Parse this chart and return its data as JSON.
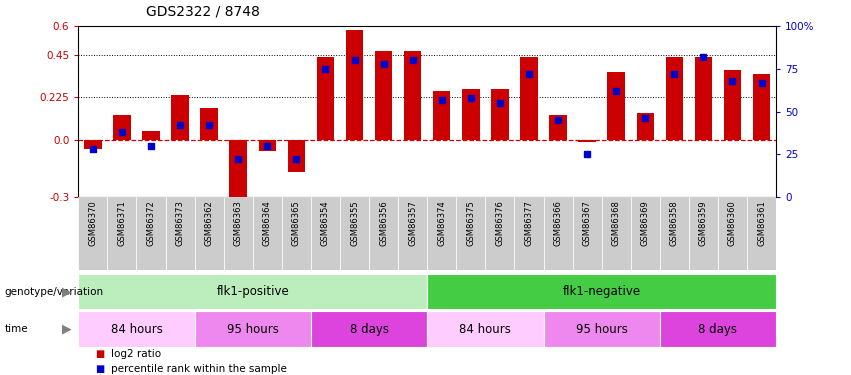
{
  "title": "GDS2322 / 8748",
  "samples": [
    "GSM86370",
    "GSM86371",
    "GSM86372",
    "GSM86373",
    "GSM86362",
    "GSM86363",
    "GSM86364",
    "GSM86365",
    "GSM86354",
    "GSM86355",
    "GSM86356",
    "GSM86357",
    "GSM86374",
    "GSM86375",
    "GSM86376",
    "GSM86377",
    "GSM86366",
    "GSM86367",
    "GSM86368",
    "GSM86369",
    "GSM86358",
    "GSM86359",
    "GSM86360",
    "GSM86361"
  ],
  "log2_ratio": [
    -0.05,
    0.13,
    0.05,
    0.24,
    0.17,
    -0.32,
    -0.06,
    -0.17,
    0.44,
    0.58,
    0.47,
    0.47,
    0.26,
    0.27,
    0.27,
    0.44,
    0.13,
    -0.01,
    0.36,
    0.14,
    0.44,
    0.44,
    0.37,
    0.35
  ],
  "percentile": [
    28,
    38,
    30,
    42,
    42,
    22,
    30,
    22,
    75,
    80,
    78,
    80,
    57,
    58,
    55,
    72,
    45,
    25,
    62,
    46,
    72,
    82,
    68,
    67
  ],
  "bar_color": "#cc0000",
  "dot_color": "#0000cc",
  "ylim_left": [
    -0.3,
    0.6
  ],
  "ylim_right": [
    0,
    100
  ],
  "y_ticks_left": [
    -0.3,
    0.0,
    0.225,
    0.45,
    0.6
  ],
  "y_ticks_right": [
    0,
    25,
    50,
    75,
    100
  ],
  "dotted_lines": [
    0.225,
    0.45
  ],
  "genotype_groups": [
    {
      "label": "flk1-positive",
      "start": 0,
      "end": 11,
      "color": "#bbeebc"
    },
    {
      "label": "flk1-negative",
      "start": 12,
      "end": 23,
      "color": "#44cc44"
    }
  ],
  "time_groups": [
    {
      "label": "84 hours",
      "start": 0,
      "end": 3,
      "color": "#ffccff"
    },
    {
      "label": "95 hours",
      "start": 4,
      "end": 7,
      "color": "#ee88ee"
    },
    {
      "label": "8 days",
      "start": 8,
      "end": 11,
      "color": "#dd44dd"
    },
    {
      "label": "84 hours",
      "start": 12,
      "end": 15,
      "color": "#ffccff"
    },
    {
      "label": "95 hours",
      "start": 16,
      "end": 19,
      "color": "#ee88ee"
    },
    {
      "label": "8 days",
      "start": 20,
      "end": 23,
      "color": "#dd44dd"
    }
  ],
  "legend_items": [
    {
      "label": "log2 ratio",
      "color": "#cc0000"
    },
    {
      "label": "percentile rank within the sample",
      "color": "#0000cc"
    }
  ],
  "genotype_label": "genotype/variation",
  "time_label": "time",
  "xtick_bg": "#cccccc",
  "fig_width": 8.51,
  "fig_height": 3.75,
  "dpi": 100
}
